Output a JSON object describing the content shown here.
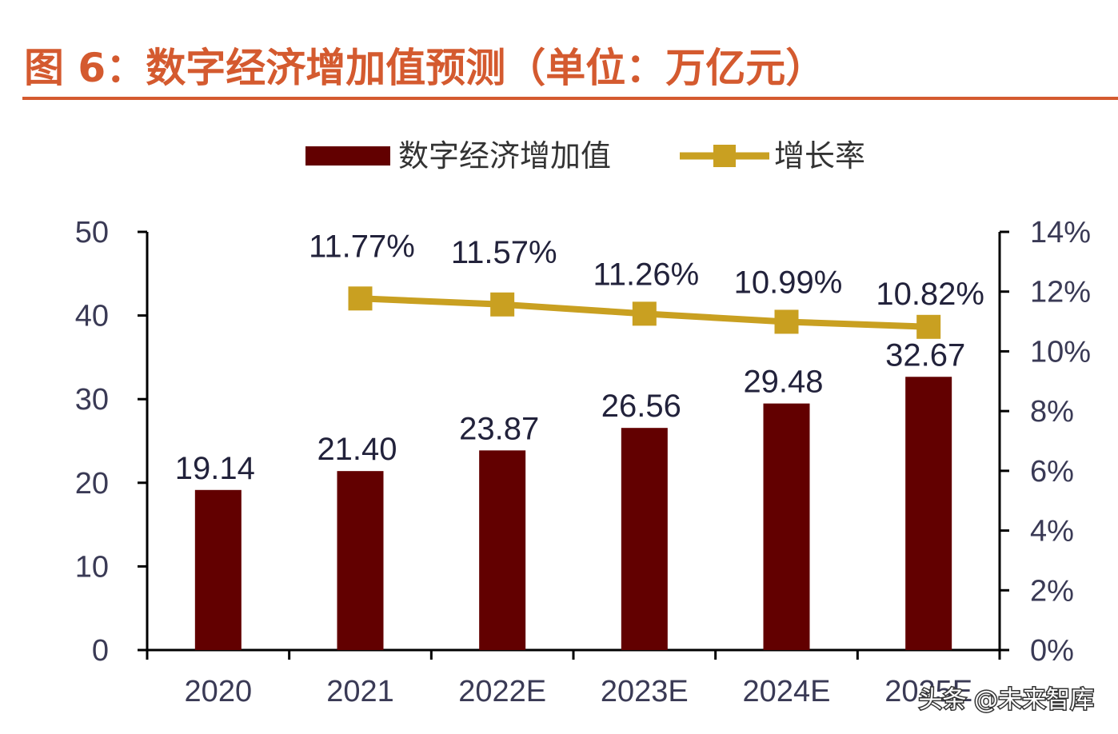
{
  "header": {
    "title": "图 6：数字经济增加值预测（单位：万亿元）"
  },
  "watermark": "头条 @未来智库",
  "colors": {
    "title": "#d45a2f",
    "title_rule": "#d45a2f",
    "bar": "#620000",
    "line": "#c9a021",
    "axis": "#000000"
  },
  "chart_data": {
    "type": "bar",
    "categories": [
      "2020",
      "2021",
      "2022E",
      "2023E",
      "2024E",
      "2025E"
    ],
    "series": [
      {
        "name": "数字经济增加值",
        "type": "bar",
        "axis": "left",
        "values": [
          19.14,
          21.4,
          23.87,
          26.56,
          29.48,
          32.67
        ],
        "labels": [
          "19.14",
          "21.40",
          "23.87",
          "26.56",
          "29.48",
          "32.67"
        ]
      },
      {
        "name": "增长率",
        "type": "line",
        "axis": "right",
        "marker": "square",
        "values": [
          null,
          11.77,
          11.57,
          11.26,
          10.99,
          10.82
        ],
        "labels": [
          "",
          "11.77%",
          "11.57%",
          "11.26%",
          "10.99%",
          "10.82%"
        ]
      }
    ],
    "y_left": {
      "ylim": [
        0,
        50
      ],
      "ticks": [
        "0",
        "10",
        "20",
        "30",
        "40",
        "50"
      ]
    },
    "y_right": {
      "ylim": [
        0,
        14
      ],
      "unit": "%",
      "ticks": [
        "0%",
        "2%",
        "4%",
        "6%",
        "8%",
        "10%",
        "12%",
        "14%"
      ]
    },
    "legend": {
      "position": "top-center",
      "entries": [
        "数字经济增加值",
        "增长率"
      ]
    },
    "grid": false
  }
}
